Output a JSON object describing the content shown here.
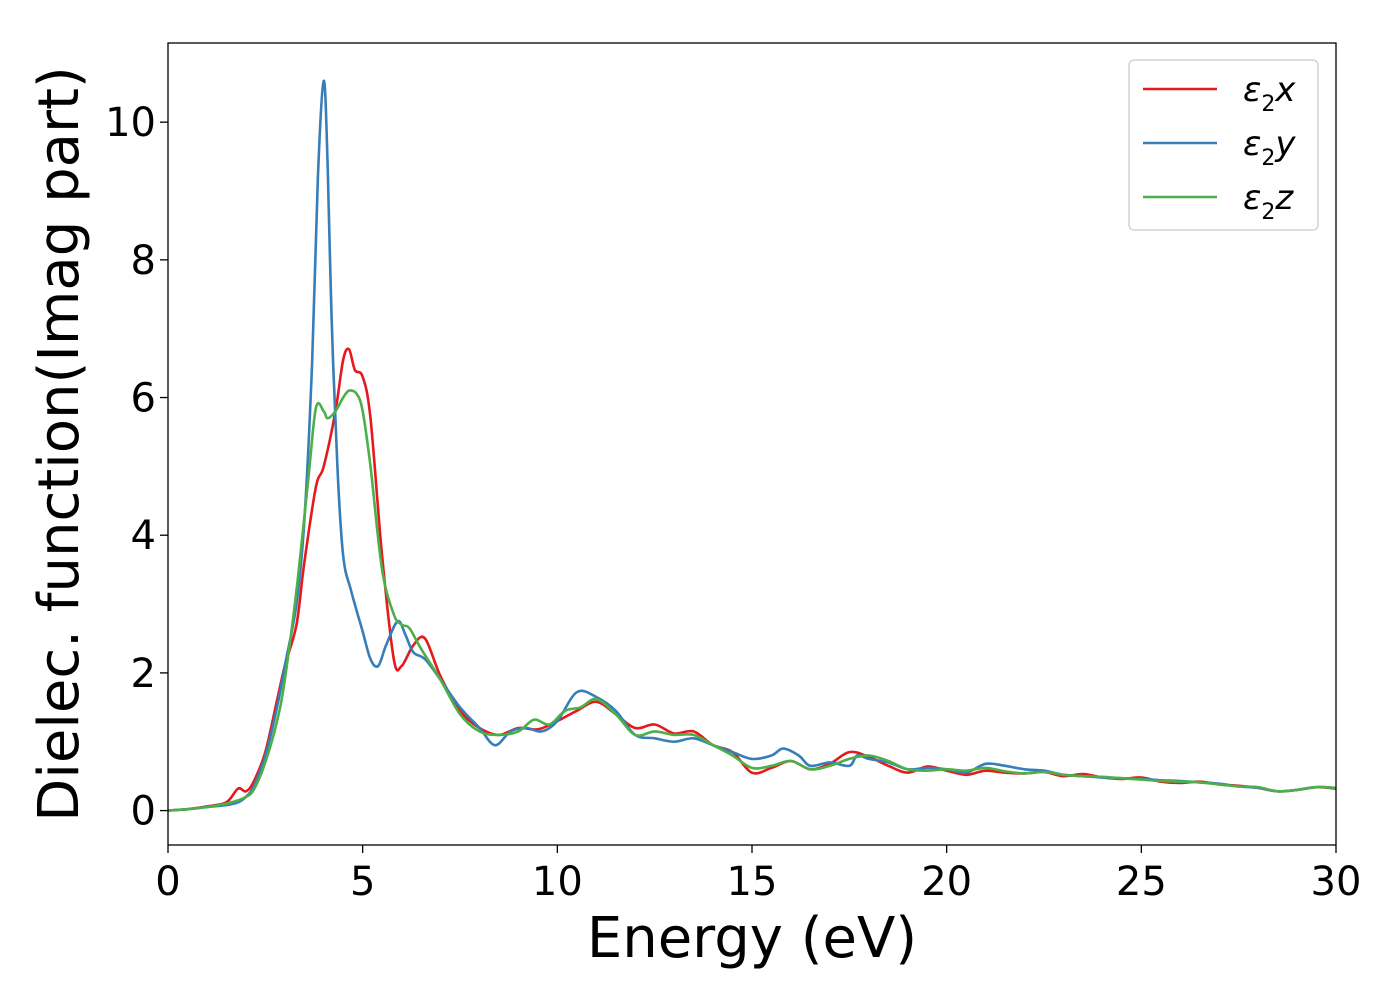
{
  "chart_data": {
    "type": "line",
    "xlabel": "Energy (eV)",
    "ylabel": "Dielec. function(Imag part)",
    "xlim": [
      0,
      30
    ],
    "ylim": [
      -0.5,
      11.15
    ],
    "xticks": [
      0,
      5,
      10,
      15,
      20,
      25,
      30
    ],
    "yticks": [
      0,
      2,
      4,
      6,
      8,
      10
    ],
    "xtick_labels": [
      "0",
      "5",
      "10",
      "15",
      "20",
      "25",
      "30"
    ],
    "ytick_labels": [
      "0",
      "2",
      "4",
      "6",
      "8",
      "10"
    ],
    "grid": false,
    "legend_position": "top-right",
    "series": [
      {
        "name": "ε₂x",
        "label_base": "ε",
        "label_sub": "2",
        "label_rest": "x",
        "color": "#e41a1c",
        "x": [
          0,
          0.5,
          1.0,
          1.5,
          1.8,
          2.0,
          2.2,
          2.5,
          2.8,
          3.0,
          3.3,
          3.5,
          3.8,
          4.0,
          4.3,
          4.5,
          4.65,
          4.8,
          5.0,
          5.2,
          5.5,
          5.8,
          6.0,
          6.3,
          6.6,
          7.0,
          7.5,
          8.0,
          8.5,
          9.0,
          9.5,
          10.0,
          10.5,
          11.0,
          11.5,
          12.0,
          12.5,
          13.0,
          13.5,
          14.0,
          14.5,
          15.0,
          15.5,
          16.0,
          16.5,
          17.0,
          17.5,
          18.0,
          18.5,
          19.0,
          19.5,
          20.0,
          20.5,
          21.0,
          21.5,
          22.0,
          22.5,
          23.0,
          23.5,
          24.0,
          24.5,
          25.0,
          25.5,
          26.0,
          26.5,
          27.0,
          27.5,
          28.0,
          28.5,
          29.0,
          29.5,
          30.0
        ],
        "values": [
          0.0,
          0.02,
          0.06,
          0.12,
          0.32,
          0.28,
          0.42,
          0.85,
          1.6,
          2.1,
          2.7,
          3.6,
          4.7,
          5.0,
          5.8,
          6.55,
          6.7,
          6.4,
          6.3,
          5.7,
          3.7,
          2.2,
          2.1,
          2.4,
          2.5,
          1.95,
          1.45,
          1.2,
          1.1,
          1.2,
          1.18,
          1.3,
          1.45,
          1.58,
          1.4,
          1.2,
          1.25,
          1.12,
          1.15,
          0.95,
          0.85,
          0.55,
          0.62,
          0.72,
          0.6,
          0.68,
          0.85,
          0.78,
          0.65,
          0.55,
          0.64,
          0.58,
          0.52,
          0.58,
          0.55,
          0.54,
          0.56,
          0.5,
          0.53,
          0.48,
          0.46,
          0.48,
          0.42,
          0.4,
          0.42,
          0.38,
          0.36,
          0.33,
          0.28,
          0.3,
          0.34,
          0.32
        ]
      },
      {
        "name": "ε₂y",
        "label_base": "ε",
        "label_sub": "2",
        "label_rest": "y",
        "color": "#377eb8",
        "x": [
          0,
          0.5,
          1.0,
          1.5,
          1.8,
          2.0,
          2.2,
          2.5,
          2.8,
          3.0,
          3.3,
          3.5,
          3.7,
          3.85,
          4.0,
          4.1,
          4.2,
          4.35,
          4.5,
          4.7,
          5.0,
          5.2,
          5.4,
          5.6,
          5.9,
          6.1,
          6.3,
          6.6,
          7.0,
          7.5,
          8.0,
          8.4,
          8.8,
          9.2,
          9.6,
          10.0,
          10.5,
          11.0,
          11.5,
          12.0,
          12.5,
          13.0,
          13.5,
          14.0,
          14.5,
          15.0,
          15.5,
          15.8,
          16.2,
          16.5,
          17.0,
          17.5,
          17.7,
          18.0,
          18.5,
          19.0,
          19.5,
          20.0,
          20.5,
          21.0,
          21.5,
          22.0,
          22.5,
          23.0,
          23.5,
          24.0,
          24.5,
          25.0,
          25.5,
          26.0,
          26.5,
          27.0,
          27.5,
          28.0,
          28.5,
          29.0,
          29.5,
          30.0
        ],
        "values": [
          0.0,
          0.02,
          0.05,
          0.08,
          0.12,
          0.2,
          0.35,
          0.8,
          1.5,
          2.1,
          3.0,
          4.2,
          6.5,
          9.2,
          10.6,
          9.4,
          7.2,
          5.0,
          3.7,
          3.2,
          2.6,
          2.2,
          2.1,
          2.4,
          2.75,
          2.55,
          2.3,
          2.2,
          1.9,
          1.5,
          1.2,
          0.95,
          1.15,
          1.2,
          1.15,
          1.3,
          1.72,
          1.65,
          1.45,
          1.1,
          1.05,
          1.0,
          1.05,
          0.95,
          0.85,
          0.75,
          0.8,
          0.9,
          0.8,
          0.65,
          0.7,
          0.65,
          0.8,
          0.75,
          0.7,
          0.6,
          0.62,
          0.6,
          0.55,
          0.68,
          0.65,
          0.6,
          0.58,
          0.52,
          0.5,
          0.48,
          0.47,
          0.46,
          0.44,
          0.43,
          0.41,
          0.39,
          0.35,
          0.33,
          0.28,
          0.3,
          0.34,
          0.33
        ]
      },
      {
        "name": "ε₂z",
        "label_base": "ε",
        "label_sub": "2",
        "label_rest": "z",
        "color": "#4daf4a",
        "x": [
          0,
          0.5,
          1.0,
          1.5,
          1.8,
          2.0,
          2.2,
          2.5,
          2.8,
          3.0,
          3.3,
          3.6,
          3.8,
          4.0,
          4.1,
          4.3,
          4.5,
          4.65,
          4.85,
          5.0,
          5.2,
          5.5,
          5.8,
          6.0,
          6.2,
          6.5,
          7.0,
          7.5,
          8.0,
          8.5,
          9.0,
          9.4,
          9.8,
          10.2,
          10.6,
          11.0,
          11.5,
          12.0,
          12.5,
          13.0,
          13.5,
          14.0,
          14.5,
          15.0,
          15.5,
          16.0,
          16.5,
          17.0,
          17.5,
          18.0,
          18.5,
          19.0,
          19.5,
          20.0,
          20.5,
          21.0,
          21.5,
          22.0,
          22.5,
          23.0,
          23.5,
          24.0,
          24.5,
          25.0,
          25.5,
          26.0,
          26.5,
          27.0,
          27.5,
          28.0,
          28.5,
          29.0,
          29.5,
          30.0
        ],
        "values": [
          0.0,
          0.02,
          0.05,
          0.1,
          0.15,
          0.2,
          0.3,
          0.7,
          1.3,
          1.9,
          3.2,
          4.8,
          5.85,
          5.8,
          5.7,
          5.8,
          6.0,
          6.1,
          6.05,
          5.8,
          5.0,
          3.5,
          2.85,
          2.7,
          2.65,
          2.35,
          1.9,
          1.4,
          1.15,
          1.1,
          1.15,
          1.32,
          1.25,
          1.45,
          1.5,
          1.62,
          1.4,
          1.1,
          1.15,
          1.1,
          1.1,
          0.95,
          0.8,
          0.62,
          0.65,
          0.72,
          0.6,
          0.65,
          0.75,
          0.8,
          0.72,
          0.6,
          0.58,
          0.6,
          0.58,
          0.62,
          0.57,
          0.54,
          0.56,
          0.52,
          0.5,
          0.49,
          0.47,
          0.45,
          0.43,
          0.42,
          0.41,
          0.38,
          0.35,
          0.34,
          0.28,
          0.3,
          0.34,
          0.33
        ]
      }
    ]
  }
}
